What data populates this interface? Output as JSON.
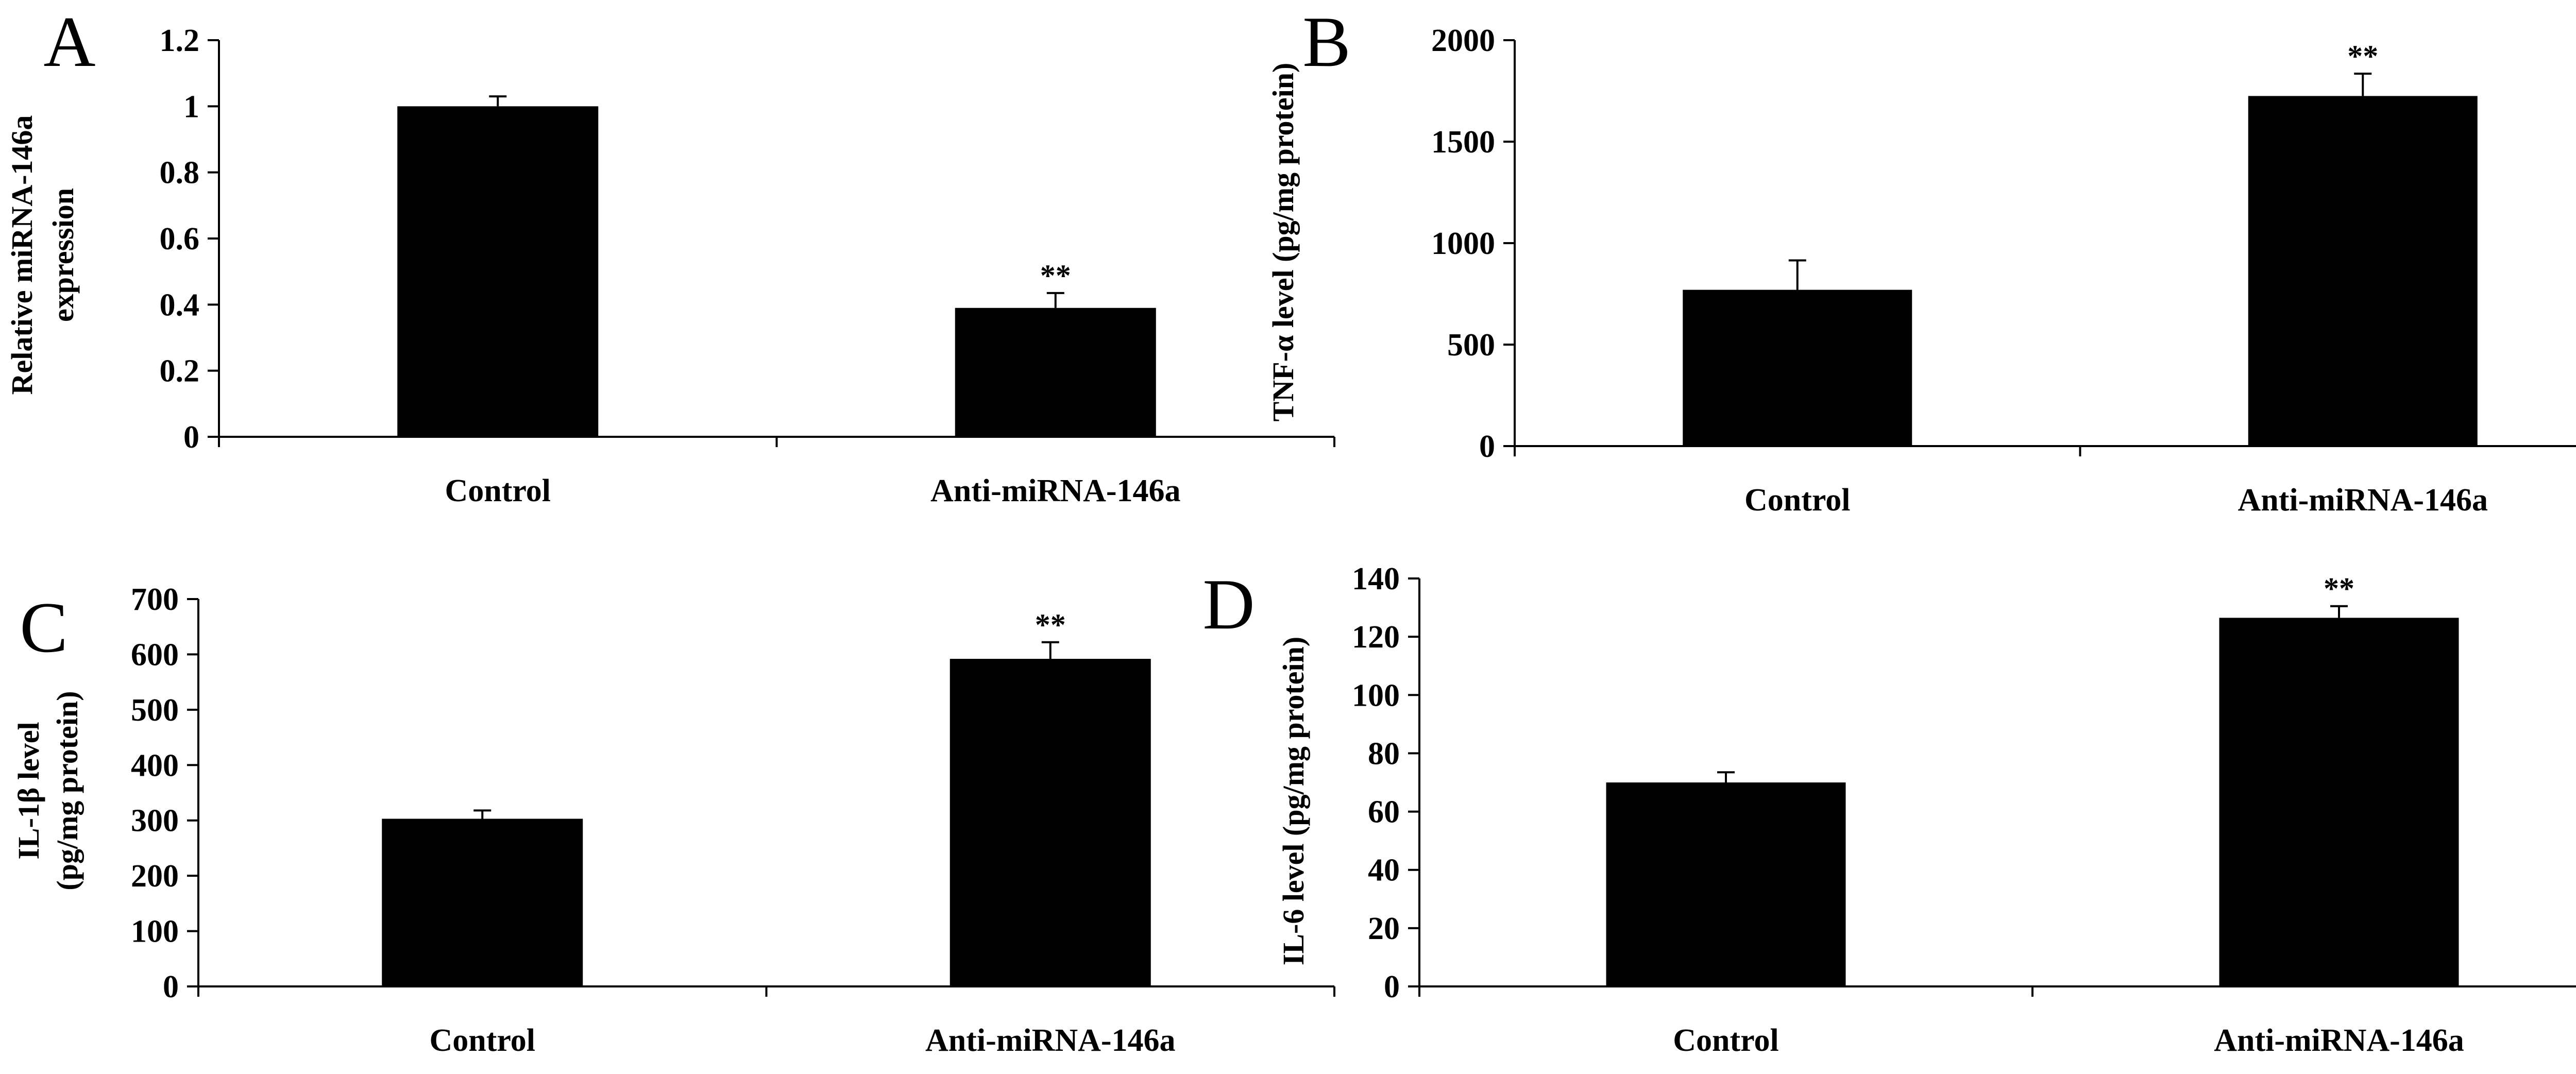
{
  "chart_data": [
    {
      "panel": "A",
      "type": "bar",
      "categories": [
        "Control",
        "Anti-miRNA-146a"
      ],
      "values": [
        1.0,
        0.39
      ],
      "errors": [
        0.03,
        0.045
      ],
      "significance": [
        "",
        "**"
      ],
      "ylabel": [
        "Relative miRNA-146a",
        "expression"
      ],
      "ylim": [
        0,
        1.2
      ],
      "yticks": [
        "0",
        "0.2",
        "0.4",
        "0.6",
        "0.8",
        "1",
        "1.2"
      ],
      "bar_color": "#000000",
      "grid": false,
      "legend": "none"
    },
    {
      "panel": "B",
      "type": "bar",
      "categories": [
        "Control",
        "Anti-miRNA-146a"
      ],
      "values": [
        770,
        1725
      ],
      "errors": [
        145,
        110
      ],
      "significance": [
        "",
        "**"
      ],
      "ylabel": [
        "TNF-α level  (pg/mg protein)"
      ],
      "ylim": [
        0,
        2000
      ],
      "yticks": [
        "0",
        "500",
        "1000",
        "1500",
        "2000"
      ],
      "bar_color": "#000000",
      "grid": false,
      "legend": "none"
    },
    {
      "panel": "C",
      "type": "bar",
      "categories": [
        "Control",
        "Anti-miRNA-146a"
      ],
      "values": [
        303,
        592
      ],
      "errors": [
        15,
        30
      ],
      "significance": [
        "",
        "**"
      ],
      "ylabel": [
        "IL-1β level",
        "(pg/mg protein)"
      ],
      "ylim": [
        0,
        700
      ],
      "yticks": [
        "0",
        "100",
        "200",
        "300",
        "400",
        "500",
        "600",
        "700"
      ],
      "bar_color": "#000000",
      "grid": false,
      "legend": "none"
    },
    {
      "panel": "D",
      "type": "bar",
      "categories": [
        "Control",
        "Anti-miRNA-146a"
      ],
      "values": [
        70,
        126.5
      ],
      "errors": [
        3.5,
        4
      ],
      "significance": [
        "",
        "**"
      ],
      "ylabel": [
        "IL-6 level (pg/mg protein)"
      ],
      "ylim": [
        0,
        140
      ],
      "yticks": [
        "0",
        "20",
        "40",
        "60",
        "80",
        "100",
        "120",
        "140"
      ],
      "bar_color": "#000000",
      "grid": false,
      "legend": "none"
    }
  ]
}
